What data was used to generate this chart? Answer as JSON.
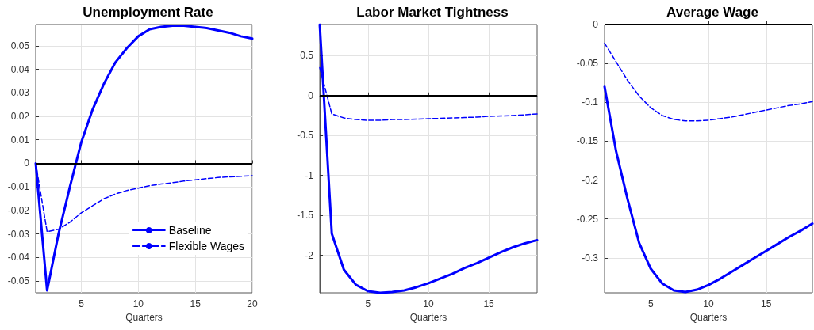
{
  "chart_data": [
    {
      "type": "line",
      "title": "Unemployment Rate",
      "xlabel": "Quarters",
      "x": [
        1,
        2,
        3,
        4,
        5,
        6,
        7,
        8,
        9,
        10,
        11,
        12,
        13,
        14,
        15,
        16,
        17,
        18,
        19,
        20
      ],
      "series": [
        {
          "name": "Baseline",
          "color": "#0000ff",
          "line_style": "solid",
          "values": [
            0,
            -0.054,
            -0.03,
            -0.01,
            0.009,
            0.023,
            0.034,
            0.043,
            0.049,
            0.054,
            0.057,
            0.058,
            0.0585,
            0.0585,
            0.058,
            0.0575,
            0.0565,
            0.0555,
            0.054,
            0.053
          ]
        },
        {
          "name": "Flexible Wages",
          "color": "#0000ff",
          "line_style": "dashed",
          "values": [
            0,
            -0.029,
            -0.028,
            -0.025,
            -0.021,
            -0.018,
            -0.015,
            -0.013,
            -0.0115,
            -0.0105,
            -0.0095,
            -0.0088,
            -0.0082,
            -0.0075,
            -0.007,
            -0.0065,
            -0.006,
            -0.0057,
            -0.0055,
            -0.0052
          ]
        }
      ],
      "xlim": [
        1,
        20
      ],
      "xticks": [
        5,
        10,
        15,
        20
      ],
      "ylim": [
        -0.055,
        0.059
      ],
      "yticks": [
        -0.05,
        -0.04,
        -0.03,
        -0.02,
        -0.01,
        0,
        0.01,
        0.02,
        0.03,
        0.04,
        0.05
      ],
      "ref_lines": [
        {
          "axis": "y",
          "value": 0,
          "color": "#000000"
        }
      ],
      "grid": true,
      "legend": "bottom right",
      "marker": "none"
    },
    {
      "type": "line",
      "title": "Labor Market Tightness",
      "xlabel": "Quarters",
      "x": [
        1,
        2,
        3,
        4,
        5,
        6,
        7,
        8,
        9,
        10,
        11,
        12,
        13,
        14,
        15,
        16,
        17,
        18,
        19
      ],
      "series": [
        {
          "color": "#0000ff",
          "line_style": "solid",
          "values": [
            0.89,
            -1.73,
            -2.18,
            -2.37,
            -2.45,
            -2.47,
            -2.46,
            -2.44,
            -2.4,
            -2.35,
            -2.29,
            -2.23,
            -2.16,
            -2.1,
            -2.03,
            -1.96,
            -1.9,
            -1.85,
            -1.81
          ]
        },
        {
          "color": "#0000ff",
          "line_style": "dashed",
          "values": [
            0.35,
            -0.23,
            -0.28,
            -0.3,
            -0.31,
            -0.31,
            -0.3,
            -0.3,
            -0.295,
            -0.29,
            -0.285,
            -0.28,
            -0.275,
            -0.27,
            -0.26,
            -0.255,
            -0.25,
            -0.24,
            -0.23
          ]
        }
      ],
      "xlim": [
        1,
        19
      ],
      "xticks": [
        5,
        10,
        15
      ],
      "ylim": [
        -2.47,
        0.89
      ],
      "yticks": [
        -2,
        -1.5,
        -1,
        -0.5,
        0,
        0.5
      ],
      "ref_lines": [
        {
          "axis": "y",
          "value": 0,
          "color": "#000000"
        }
      ],
      "grid": true,
      "marker": "none"
    },
    {
      "type": "line",
      "title": "Average Wage",
      "xlabel": "Quarters",
      "x": [
        1,
        2,
        3,
        4,
        5,
        6,
        7,
        8,
        9,
        10,
        11,
        12,
        13,
        14,
        15,
        16,
        17,
        18,
        19
      ],
      "series": [
        {
          "color": "#0000ff",
          "line_style": "solid",
          "values": [
            -0.08,
            -0.163,
            -0.225,
            -0.281,
            -0.314,
            -0.333,
            -0.342,
            -0.344,
            -0.341,
            -0.335,
            -0.327,
            -0.318,
            -0.309,
            -0.3,
            -0.291,
            -0.282,
            -0.273,
            -0.265,
            -0.256
          ]
        },
        {
          "color": "#0000ff",
          "line_style": "dashed",
          "values": [
            -0.024,
            -0.048,
            -0.072,
            -0.092,
            -0.107,
            -0.117,
            -0.122,
            -0.124,
            -0.124,
            -0.123,
            -0.121,
            -0.119,
            -0.116,
            -0.113,
            -0.11,
            -0.107,
            -0.104,
            -0.102,
            -0.099
          ]
        }
      ],
      "xlim": [
        1,
        19
      ],
      "xticks": [
        5,
        10,
        15
      ],
      "ylim": [
        -0.345,
        0
      ],
      "yticks": [
        -0.3,
        -0.25,
        -0.2,
        -0.15,
        -0.1,
        -0.05,
        0
      ],
      "ref_lines": [
        {
          "axis": "y",
          "value": 0,
          "color": "#000000"
        }
      ],
      "grid": true,
      "marker": "none"
    }
  ]
}
